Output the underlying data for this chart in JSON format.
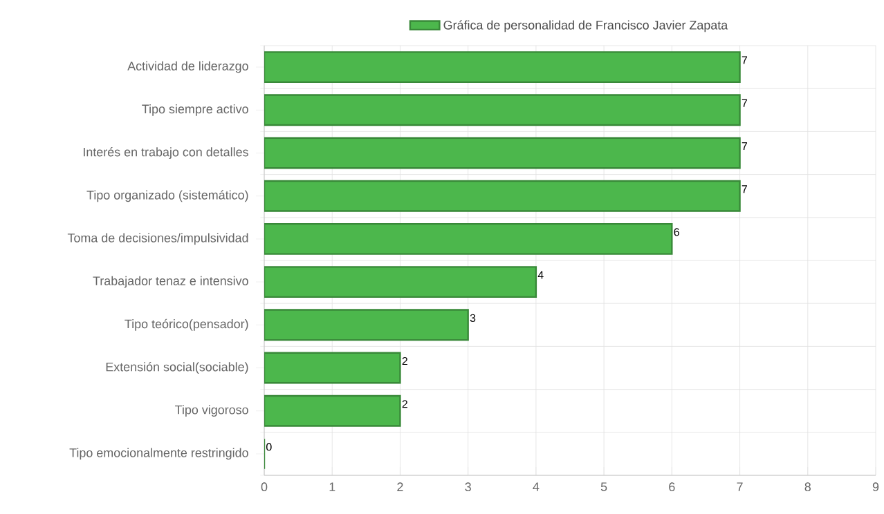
{
  "chart_data": {
    "type": "bar",
    "orientation": "horizontal",
    "categories": [
      "Actividad de liderazgo",
      "Tipo siempre activo",
      "Interés en trabajo con detalles",
      "Tipo organizado (sistemático)",
      "Toma de decisiones/impulsividad",
      "Trabajador tenaz e intensivo",
      "Tipo teórico(pensador)",
      "Extensión social(sociable)",
      "Tipo vigoroso",
      "Tipo emocionalmente restringido"
    ],
    "series": [
      {
        "name": "Gráfica de personalidad de Francisco Javier Zapata",
        "color": "#4cb74c",
        "values": [
          7,
          7,
          7,
          7,
          6,
          4,
          3,
          2,
          2,
          0
        ]
      }
    ],
    "xlim": [
      0,
      9
    ],
    "xticks": [
      0,
      1,
      2,
      3,
      4,
      5,
      6,
      7,
      8,
      9
    ],
    "grid": true,
    "legend": "top",
    "data_labels": true
  }
}
